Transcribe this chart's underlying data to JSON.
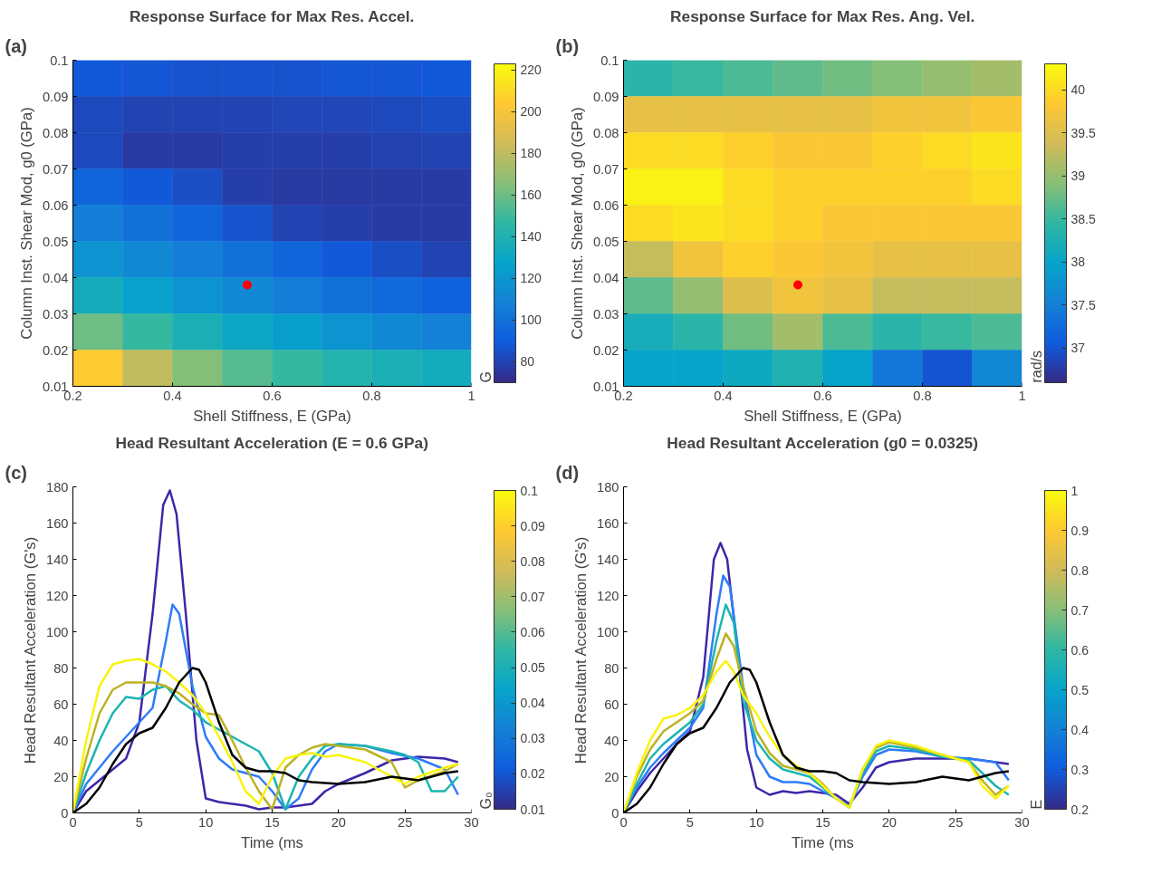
{
  "chart_data": [
    {
      "type": "heatmap",
      "title": "Response Surface for Max Res. Accel.",
      "xlabel": "Shell Stiffness, E (GPa)",
      "ylabel": "Column Inst. Shear Mod, g0 (GPa)",
      "clabel": "G",
      "annotations": [
        "(a)"
      ],
      "xlim": [
        0.2,
        1
      ],
      "xticks": [
        0.2,
        0.4,
        0.6,
        0.8,
        1
      ],
      "ylim": [
        0.01,
        0.1
      ],
      "yticks": [
        0.01,
        0.02,
        0.03,
        0.04,
        0.05,
        0.06,
        0.07,
        0.08,
        0.09,
        0.1
      ],
      "clim": [
        70,
        223
      ],
      "cticks": [
        80,
        100,
        120,
        140,
        160,
        180,
        200,
        220
      ],
      "cells": [
        [
          88,
          87,
          86,
          86,
          86,
          87,
          87,
          88
        ],
        [
          82,
          80,
          80,
          80,
          81,
          81,
          82,
          84
        ],
        [
          82,
          77,
          77,
          78,
          78,
          78,
          79,
          80
        ],
        [
          94,
          88,
          84,
          78,
          76,
          76,
          76,
          77
        ],
        [
          106,
          100,
          94,
          86,
          80,
          78,
          77,
          77
        ],
        [
          118,
          112,
          106,
          100,
          94,
          88,
          84,
          80
        ],
        [
          135,
          126,
          118,
          112,
          106,
          100,
          96,
          92
        ],
        [
          160,
          148,
          138,
          130,
          124,
          118,
          112,
          108
        ],
        [
          205,
          180,
          165,
          155,
          148,
          142,
          138,
          134
        ]
      ],
      "series": [
        {
          "type": "scatter",
          "x": [
            0.55
          ],
          "values": [
            0.038
          ],
          "color": "#ff0000"
        }
      ]
    },
    {
      "type": "heatmap",
      "title": "Response Surface for Max Res. Ang. Vel.",
      "xlabel": "Shell Stiffness, E (GPa)",
      "ylabel": "Column Inst. Shear Mod, g0 (GPa)",
      "clabel": "rad/s",
      "annotations": [
        "(b)"
      ],
      "xlim": [
        0.2,
        1
      ],
      "xticks": [
        0.2,
        0.4,
        0.6,
        0.8,
        1
      ],
      "ylim": [
        0.01,
        0.1
      ],
      "yticks": [
        0.01,
        0.02,
        0.03,
        0.04,
        0.05,
        0.06,
        0.07,
        0.08,
        0.09,
        0.1
      ],
      "clim": [
        36.6,
        40.3
      ],
      "cticks": [
        37,
        37.5,
        38,
        38.5,
        39,
        39.5,
        40
      ],
      "cells": [
        [
          38.4,
          38.5,
          38.6,
          38.7,
          38.8,
          38.9,
          39.0,
          39.1
        ],
        [
          39.6,
          39.6,
          39.6,
          39.6,
          39.6,
          39.7,
          39.7,
          39.8
        ],
        [
          40.0,
          40.0,
          39.9,
          39.8,
          39.8,
          39.9,
          40.0,
          40.1
        ],
        [
          40.2,
          40.2,
          40.0,
          39.9,
          39.9,
          39.9,
          39.9,
          40.0
        ],
        [
          40.0,
          40.1,
          40.0,
          39.9,
          39.8,
          39.8,
          39.8,
          39.8
        ],
        [
          39.3,
          39.7,
          39.9,
          39.8,
          39.7,
          39.6,
          39.6,
          39.6
        ],
        [
          38.7,
          39.0,
          39.5,
          39.7,
          39.6,
          39.3,
          39.3,
          39.3
        ],
        [
          38.2,
          38.4,
          38.8,
          39.1,
          38.6,
          38.4,
          38.5,
          38.6
        ],
        [
          38.0,
          38.0,
          38.1,
          38.3,
          38.0,
          37.4,
          37.0,
          37.6
        ]
      ],
      "series": [
        {
          "type": "scatter",
          "x": [
            0.55
          ],
          "values": [
            0.038
          ],
          "color": "#ff0000"
        }
      ]
    },
    {
      "type": "line",
      "title": "Head Resultant Acceleration (E = 0.6 GPa)",
      "xlabel": "Time (ms",
      "ylabel": "Head Resultant Acceleration (G's)",
      "clabel": "G₀",
      "annotations": [
        "(c)"
      ],
      "xlim": [
        0,
        30
      ],
      "xticks": [
        0,
        5,
        10,
        15,
        20,
        25,
        30
      ],
      "ylim": [
        0,
        180
      ],
      "yticks": [
        0,
        20,
        40,
        60,
        80,
        100,
        120,
        140,
        160,
        180
      ],
      "clim": [
        0.01,
        0.1
      ],
      "cticks": [
        0.01,
        0.02,
        0.03,
        0.04,
        0.05,
        0.06,
        0.07,
        0.08,
        0.09,
        0.1
      ],
      "series": [
        {
          "color": "#3e26a8",
          "x": [
            0,
            1,
            2,
            3,
            4,
            5,
            6,
            6.8,
            7.3,
            7.8,
            8.5,
            9.3,
            10,
            11,
            12,
            13,
            14,
            15,
            16,
            17,
            18,
            19,
            20,
            22,
            24,
            26,
            28,
            29
          ],
          "values": [
            0,
            12,
            18,
            24,
            30,
            50,
            110,
            170,
            178,
            165,
            110,
            40,
            8,
            6,
            5,
            4,
            2,
            3,
            3,
            4,
            5,
            12,
            16,
            22,
            29,
            31,
            30,
            28
          ]
        },
        {
          "color": "#2f7cf7",
          "x": [
            0,
            1,
            2,
            3,
            4,
            5,
            6,
            7,
            7.5,
            8,
            9,
            10,
            11,
            12,
            13,
            14,
            15,
            16,
            17,
            18,
            19,
            20,
            22,
            24,
            26,
            28,
            29
          ],
          "values": [
            0,
            16,
            25,
            34,
            42,
            50,
            58,
            95,
            115,
            110,
            70,
            42,
            30,
            24,
            22,
            20,
            12,
            2,
            8,
            24,
            34,
            38,
            37,
            33,
            30,
            24,
            10
          ]
        },
        {
          "color": "#1bb5b0",
          "x": [
            0,
            1,
            2,
            3,
            4,
            5,
            6,
            7,
            8,
            9,
            10,
            11,
            12,
            13,
            14,
            15,
            16,
            17,
            18,
            19,
            20,
            22,
            24,
            25,
            26,
            27,
            28,
            29
          ],
          "values": [
            0,
            22,
            40,
            55,
            64,
            63,
            68,
            70,
            62,
            57,
            50,
            46,
            42,
            38,
            34,
            22,
            2,
            20,
            30,
            37,
            38,
            37,
            34,
            32,
            28,
            12,
            12,
            20
          ]
        },
        {
          "color": "#bcb226",
          "x": [
            0,
            1,
            2,
            3,
            4,
            5,
            6,
            7,
            8,
            9,
            10,
            11,
            12,
            13,
            14,
            15,
            16,
            17,
            18,
            19,
            20,
            22,
            24,
            25,
            26,
            28,
            29
          ],
          "values": [
            0,
            30,
            55,
            68,
            72,
            72,
            72,
            70,
            66,
            60,
            55,
            54,
            40,
            25,
            12,
            2,
            25,
            32,
            36,
            38,
            37,
            35,
            28,
            14,
            18,
            23,
            27
          ]
        },
        {
          "color": "#f9f30e",
          "x": [
            0,
            1,
            2,
            3,
            4,
            5,
            6,
            7,
            8,
            9,
            10,
            11,
            12,
            13,
            14,
            15,
            16,
            17,
            18,
            19,
            20,
            22,
            24,
            25,
            26,
            28,
            29
          ],
          "values": [
            0,
            40,
            70,
            82,
            84,
            85,
            82,
            78,
            72,
            65,
            55,
            42,
            28,
            12,
            5,
            20,
            30,
            32,
            33,
            31,
            32,
            28,
            20,
            16,
            20,
            25,
            27
          ]
        },
        {
          "color": "#000000",
          "x": [
            0,
            1,
            2,
            3,
            4,
            5,
            6,
            7,
            8,
            9,
            9.5,
            10,
            11,
            12,
            13,
            14,
            15,
            16,
            17,
            18,
            20,
            22,
            24,
            26,
            28,
            29
          ],
          "values": [
            0,
            5,
            14,
            27,
            38,
            44,
            47,
            58,
            72,
            80,
            79,
            72,
            50,
            32,
            25,
            23,
            23,
            22,
            18,
            17,
            16,
            17,
            20,
            18,
            22,
            23
          ]
        }
      ]
    },
    {
      "type": "line",
      "title": "Head Resultant Acceleration (g0 = 0.0325)",
      "xlabel": "Time (ms",
      "ylabel": "Head Resultant Acceleration (G's)",
      "clabel": "E",
      "annotations": [
        "(d)"
      ],
      "xlim": [
        0,
        30
      ],
      "xticks": [
        0,
        5,
        10,
        15,
        20,
        25,
        30
      ],
      "ylim": [
        0,
        180
      ],
      "yticks": [
        0,
        20,
        40,
        60,
        80,
        100,
        120,
        140,
        160,
        180
      ],
      "clim": [
        0.2,
        1
      ],
      "cticks": [
        0.2,
        0.3,
        0.4,
        0.5,
        0.6,
        0.7,
        0.8,
        0.9,
        1
      ],
      "series": [
        {
          "color": "#3e26a8",
          "x": [
            0,
            1,
            2,
            3,
            4,
            5,
            6,
            6.8,
            7.3,
            7.8,
            8.5,
            9.3,
            10,
            11,
            12,
            13,
            14,
            15,
            16,
            17,
            18,
            19,
            20,
            22,
            24,
            26,
            28,
            29
          ],
          "values": [
            0,
            12,
            22,
            30,
            38,
            45,
            75,
            140,
            149,
            140,
            95,
            35,
            14,
            10,
            12,
            11,
            12,
            11,
            10,
            5,
            14,
            25,
            28,
            30,
            30,
            30,
            28,
            27
          ]
        },
        {
          "color": "#2f7cf7",
          "x": [
            0,
            1,
            2,
            3,
            4,
            5,
            6,
            7,
            7.5,
            8,
            9,
            10,
            11,
            12,
            13,
            14,
            15,
            16,
            17,
            18,
            19,
            20,
            22,
            24,
            26,
            28,
            29
          ],
          "values": [
            0,
            14,
            25,
            33,
            40,
            47,
            58,
            110,
            131,
            125,
            70,
            32,
            20,
            17,
            17,
            16,
            12,
            8,
            4,
            20,
            32,
            35,
            34,
            31,
            30,
            28,
            18
          ]
        },
        {
          "color": "#1bb5b0",
          "x": [
            0,
            1,
            2,
            3,
            4,
            5,
            6,
            7,
            7.7,
            8.3,
            9,
            10,
            11,
            12,
            13,
            14,
            15,
            16,
            17,
            18,
            19,
            20,
            22,
            24,
            26,
            28,
            29
          ],
          "values": [
            0,
            16,
            30,
            38,
            44,
            50,
            60,
            95,
            115,
            105,
            62,
            40,
            30,
            24,
            22,
            20,
            14,
            8,
            3,
            22,
            34,
            37,
            35,
            31,
            29,
            15,
            10
          ]
        },
        {
          "color": "#bcb226",
          "x": [
            0,
            1,
            2,
            3,
            4,
            5,
            6,
            7,
            7.7,
            8.3,
            9,
            10,
            11,
            12,
            13,
            14,
            15,
            16,
            17,
            18,
            19,
            20,
            22,
            24,
            26,
            27,
            28,
            29
          ],
          "values": [
            0,
            20,
            35,
            45,
            50,
            55,
            62,
            85,
            99,
            92,
            70,
            45,
            33,
            26,
            24,
            22,
            16,
            8,
            3,
            24,
            36,
            39,
            36,
            32,
            28,
            18,
            10,
            15
          ]
        },
        {
          "color": "#f9f30e",
          "x": [
            0,
            1,
            2,
            3,
            4,
            5,
            6,
            7,
            7.7,
            8.3,
            9,
            10,
            11,
            12,
            13,
            14,
            15,
            16,
            17,
            18,
            19,
            20,
            22,
            24,
            26,
            27,
            28,
            29
          ],
          "values": [
            0,
            22,
            40,
            52,
            54,
            58,
            65,
            78,
            84,
            78,
            65,
            55,
            42,
            32,
            26,
            22,
            15,
            8,
            3,
            24,
            37,
            40,
            37,
            32,
            28,
            15,
            8,
            15
          ]
        },
        {
          "color": "#000000",
          "x": [
            0,
            1,
            2,
            3,
            4,
            5,
            6,
            7,
            8,
            9,
            9.5,
            10,
            11,
            12,
            13,
            14,
            15,
            16,
            17,
            18,
            20,
            22,
            24,
            26,
            28,
            29
          ],
          "values": [
            0,
            5,
            14,
            27,
            38,
            44,
            47,
            58,
            72,
            80,
            79,
            72,
            50,
            32,
            25,
            23,
            23,
            22,
            18,
            17,
            16,
            17,
            20,
            18,
            22,
            23
          ]
        }
      ]
    }
  ]
}
